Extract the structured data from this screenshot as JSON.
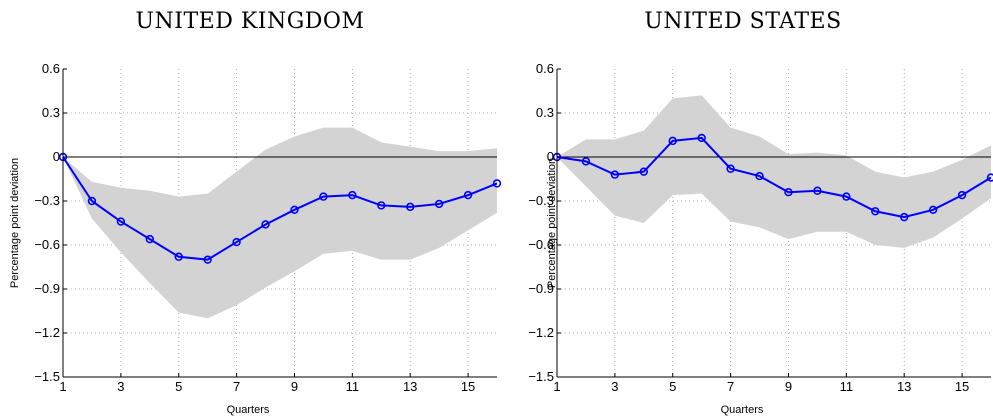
{
  "chart_data": [
    {
      "type": "line",
      "title": "UNITED KINGDOM",
      "xlabel": "Quarters",
      "ylabel": "Percentage point deviation",
      "xlim": [
        1,
        16
      ],
      "ylim": [
        -1.5,
        0.6
      ],
      "xticks": [
        1,
        3,
        5,
        7,
        9,
        11,
        13,
        15
      ],
      "yticks": [
        0.6,
        0.3,
        0,
        -0.3,
        -0.6,
        -0.9,
        -1.2,
        -1.5
      ],
      "ytick_labels": [
        "0.6",
        "0.3",
        "0",
        "−0.3",
        "−0.6",
        "−0.9",
        "−1.2",
        "−1.5"
      ],
      "grid": true,
      "zero_line": true,
      "x": [
        1,
        2,
        3,
        4,
        5,
        6,
        7,
        8,
        9,
        10,
        11,
        12,
        13,
        14,
        15,
        16
      ],
      "series": [
        {
          "values": [
            0,
            -0.3,
            -0.44,
            -0.56,
            -0.68,
            -0.7,
            -0.58,
            -0.46,
            -0.36,
            -0.27,
            -0.26,
            -0.33,
            -0.34,
            -0.32,
            -0.26,
            -0.18
          ],
          "color": "#0000ff",
          "marker": "circle"
        }
      ],
      "band": {
        "upper": [
          0,
          -0.17,
          -0.21,
          -0.23,
          -0.27,
          -0.25,
          -0.1,
          0.05,
          0.14,
          0.2,
          0.2,
          0.1,
          0.07,
          0.04,
          0.04,
          0.06
        ],
        "lower": [
          0,
          -0.42,
          -0.65,
          -0.86,
          -1.06,
          -1.1,
          -1.01,
          -0.89,
          -0.78,
          -0.66,
          -0.64,
          -0.7,
          -0.7,
          -0.62,
          -0.5,
          -0.38
        ],
        "color": "#d3d3d3"
      }
    },
    {
      "type": "line",
      "title": "UNITED STATES",
      "xlabel": "Quarters",
      "ylabel": "Percentage point deviation",
      "xlim": [
        1,
        16
      ],
      "ylim": [
        -1.5,
        0.6
      ],
      "xticks": [
        1,
        3,
        5,
        7,
        9,
        11,
        13,
        15
      ],
      "yticks": [
        0.6,
        0.3,
        0,
        -0.3,
        -0.6,
        -0.9,
        -1.2,
        -1.5
      ],
      "ytick_labels": [
        "0.6",
        "0.3",
        "0",
        "−0.3",
        "−0.6",
        "−0.9",
        "−1.2",
        "−1.5"
      ],
      "grid": true,
      "zero_line": true,
      "x": [
        1,
        2,
        3,
        4,
        5,
        6,
        7,
        8,
        9,
        10,
        11,
        12,
        13,
        14,
        15,
        16
      ],
      "series": [
        {
          "values": [
            0,
            -0.03,
            -0.12,
            -0.1,
            0.11,
            0.13,
            -0.08,
            -0.13,
            -0.24,
            -0.23,
            -0.27,
            -0.37,
            -0.41,
            -0.36,
            -0.26,
            -0.14
          ],
          "color": "#0000ff",
          "marker": "circle"
        }
      ],
      "band": {
        "upper": [
          0,
          0.12,
          0.12,
          0.18,
          0.4,
          0.42,
          0.2,
          0.14,
          0.02,
          0.03,
          0.01,
          -0.1,
          -0.14,
          -0.1,
          -0.02,
          0.08
        ],
        "lower": [
          0,
          -0.2,
          -0.4,
          -0.45,
          -0.26,
          -0.25,
          -0.44,
          -0.48,
          -0.56,
          -0.51,
          -0.51,
          -0.6,
          -0.62,
          -0.55,
          -0.42,
          -0.28
        ],
        "color": "#d3d3d3"
      }
    }
  ]
}
